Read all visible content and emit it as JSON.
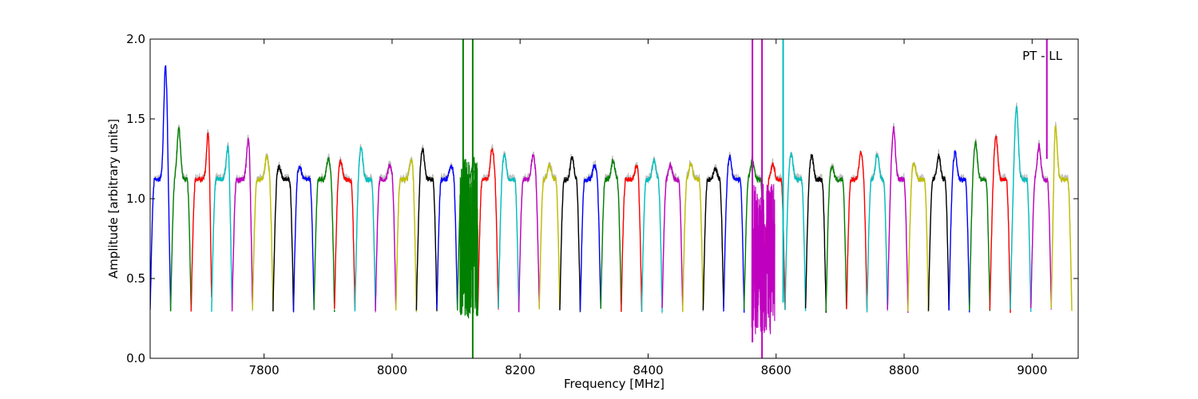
{
  "chart_data": {
    "type": "line",
    "title": "",
    "xlabel": "Frequency [MHz]",
    "ylabel": "Amplitude [arbitrary units]",
    "annotation": "PT - LL",
    "xlim": [
      7622,
      9072
    ],
    "ylim": [
      0.0,
      2.0
    ],
    "xticks": [
      7800,
      8000,
      8200,
      8400,
      8600,
      8800,
      9000
    ],
    "yticks": [
      0.0,
      0.5,
      1.0,
      1.5,
      2.0
    ],
    "xtick_labels": [
      "7800",
      "8000",
      "8200",
      "8400",
      "8600",
      "8800",
      "9000"
    ],
    "ytick_labels": [
      "0.0",
      "0.5",
      "1.0",
      "1.5",
      "2.0"
    ],
    "grid": false,
    "legend": "none",
    "channel_width_mhz": 32,
    "first_channel_start_mhz": 7622,
    "color_cycle": [
      "#0000ff",
      "#008000",
      "#ff0000",
      "#00bfbf",
      "#bf00bf",
      "#bfbf00",
      "#000000"
    ],
    "background_trace_color": "#bfbfbf",
    "series": [
      {
        "start": 7622,
        "end": 7654,
        "color": "#0000ff",
        "peak": 1.83,
        "peak_pos": 0.75
      },
      {
        "start": 7654,
        "end": 7686,
        "color": "#008000",
        "peak": 1.44,
        "peak_pos": 0.4
      },
      {
        "start": 7686,
        "end": 7718,
        "color": "#ff0000",
        "peak": 1.45,
        "peak_pos": 0.85
      },
      {
        "start": 7718,
        "end": 7750,
        "color": "#00bfbf",
        "peak": 1.32,
        "peak_pos": 0.8
      },
      {
        "start": 7750,
        "end": 7782,
        "color": "#bf00bf",
        "peak": 1.38,
        "peak_pos": 0.8
      },
      {
        "start": 7782,
        "end": 7814,
        "color": "#bfbf00",
        "peak": 1.27,
        "peak_pos": 0.7
      },
      {
        "start": 7814,
        "end": 7846,
        "color": "#000000",
        "peak": 1.2,
        "peak_pos": 0.3
      },
      {
        "start": 7846,
        "end": 7878,
        "color": "#0000ff",
        "peak": 1.2,
        "peak_pos": 0.3
      },
      {
        "start": 7878,
        "end": 7910,
        "color": "#008000",
        "peak": 1.25,
        "peak_pos": 0.7
      },
      {
        "start": 7910,
        "end": 7942,
        "color": "#ff0000",
        "peak": 1.23,
        "peak_pos": 0.3
      },
      {
        "start": 7942,
        "end": 7974,
        "color": "#00bfbf",
        "peak": 1.32,
        "peak_pos": 0.3
      },
      {
        "start": 7974,
        "end": 8006,
        "color": "#bf00bf",
        "peak": 1.21,
        "peak_pos": 0.7
      },
      {
        "start": 8006,
        "end": 8038,
        "color": "#bfbf00",
        "peak": 1.24,
        "peak_pos": 0.75
      },
      {
        "start": 8038,
        "end": 8070,
        "color": "#000000",
        "peak": 1.31,
        "peak_pos": 0.3
      },
      {
        "start": 8070,
        "end": 8102,
        "color": "#0000ff",
        "peak": 1.21,
        "peak_pos": 0.7
      },
      {
        "start": 8102,
        "end": 8134,
        "color": "#008000",
        "peak": 1.25,
        "peak_pos": 0.8
      },
      {
        "start": 8134,
        "end": 8166,
        "color": "#ff0000",
        "peak": 1.32,
        "peak_pos": 0.7
      },
      {
        "start": 8166,
        "end": 8198,
        "color": "#00bfbf",
        "peak": 1.28,
        "peak_pos": 0.3
      },
      {
        "start": 8198,
        "end": 8230,
        "color": "#bf00bf",
        "peak": 1.27,
        "peak_pos": 0.7
      },
      {
        "start": 8230,
        "end": 8262,
        "color": "#bfbf00",
        "peak": 1.21,
        "peak_pos": 0.5
      },
      {
        "start": 8262,
        "end": 8294,
        "color": "#000000",
        "peak": 1.26,
        "peak_pos": 0.6
      },
      {
        "start": 8294,
        "end": 8326,
        "color": "#0000ff",
        "peak": 1.21,
        "peak_pos": 0.7
      },
      {
        "start": 8326,
        "end": 8358,
        "color": "#008000",
        "peak": 1.24,
        "peak_pos": 0.6
      },
      {
        "start": 8358,
        "end": 8390,
        "color": "#ff0000",
        "peak": 1.21,
        "peak_pos": 0.75
      },
      {
        "start": 8390,
        "end": 8422,
        "color": "#00bfbf",
        "peak": 1.24,
        "peak_pos": 0.6
      },
      {
        "start": 8422,
        "end": 8454,
        "color": "#bf00bf",
        "peak": 1.21,
        "peak_pos": 0.4
      },
      {
        "start": 8454,
        "end": 8486,
        "color": "#bfbf00",
        "peak": 1.22,
        "peak_pos": 0.4
      },
      {
        "start": 8486,
        "end": 8518,
        "color": "#000000",
        "peak": 1.19,
        "peak_pos": 0.6
      },
      {
        "start": 8518,
        "end": 8550,
        "color": "#0000ff",
        "peak": 1.26,
        "peak_pos": 0.3
      },
      {
        "start": 8550,
        "end": 8582,
        "color": "#008000",
        "peak": 1.24,
        "peak_pos": 0.4
      },
      {
        "start": 8582,
        "end": 8614,
        "color": "#ff0000",
        "peak": 1.22,
        "peak_pos": 0.4
      },
      {
        "start": 8614,
        "end": 8646,
        "color": "#00bfbf",
        "peak": 1.28,
        "peak_pos": 0.3
      },
      {
        "start": 8646,
        "end": 8678,
        "color": "#000000",
        "peak": 1.27,
        "peak_pos": 0.3
      },
      {
        "start": 8678,
        "end": 8710,
        "color": "#008000",
        "peak": 1.2,
        "peak_pos": 0.3
      },
      {
        "start": 8710,
        "end": 8742,
        "color": "#ff0000",
        "peak": 1.29,
        "peak_pos": 0.7
      },
      {
        "start": 8742,
        "end": 8774,
        "color": "#00bfbf",
        "peak": 1.28,
        "peak_pos": 0.5
      },
      {
        "start": 8774,
        "end": 8806,
        "color": "#bf00bf",
        "peak": 1.44,
        "peak_pos": 0.3
      },
      {
        "start": 8806,
        "end": 8838,
        "color": "#bfbf00",
        "peak": 1.22,
        "peak_pos": 0.3
      },
      {
        "start": 8838,
        "end": 8870,
        "color": "#000000",
        "peak": 1.27,
        "peak_pos": 0.5
      },
      {
        "start": 8870,
        "end": 8902,
        "color": "#0000ff",
        "peak": 1.29,
        "peak_pos": 0.3
      },
      {
        "start": 8902,
        "end": 8934,
        "color": "#008000",
        "peak": 1.35,
        "peak_pos": 0.3
      },
      {
        "start": 8934,
        "end": 8966,
        "color": "#ff0000",
        "peak": 1.39,
        "peak_pos": 0.3
      },
      {
        "start": 8966,
        "end": 8998,
        "color": "#00bfbf",
        "peak": 1.57,
        "peak_pos": 0.3
      },
      {
        "start": 8998,
        "end": 9030,
        "color": "#bf00bf",
        "peak": 1.33,
        "peak_pos": 0.4
      },
      {
        "start": 9030,
        "end": 9062,
        "color": "#bfbf00",
        "peak": 1.46,
        "peak_pos": 0.2
      }
    ],
    "rfi_bursts": [
      {
        "x_start": 8106,
        "x_end": 8134,
        "color": "#008000",
        "low": 0.25,
        "high": 1.25
      },
      {
        "x_start": 8562,
        "x_end": 8598,
        "color": "#bf00bf",
        "low": 0.15,
        "high": 1.1
      }
    ],
    "spikes": [
      {
        "x": 8111,
        "color": "#008000",
        "y_low": 0.45,
        "y_high": 2.0
      },
      {
        "x": 8126,
        "color": "#008000",
        "y_low": 0.0,
        "y_high": 2.0
      },
      {
        "x": 8563,
        "color": "#bf00bf",
        "y_low": 0.1,
        "y_high": 2.0
      },
      {
        "x": 8578,
        "color": "#bf00bf",
        "y_low": 0.0,
        "y_high": 2.0
      },
      {
        "x": 8611,
        "color": "#00bfbf",
        "y_low": 0.35,
        "y_high": 2.0
      },
      {
        "x": 9023,
        "color": "#bf00bf",
        "y_low": 1.25,
        "y_high": 2.0
      }
    ]
  }
}
